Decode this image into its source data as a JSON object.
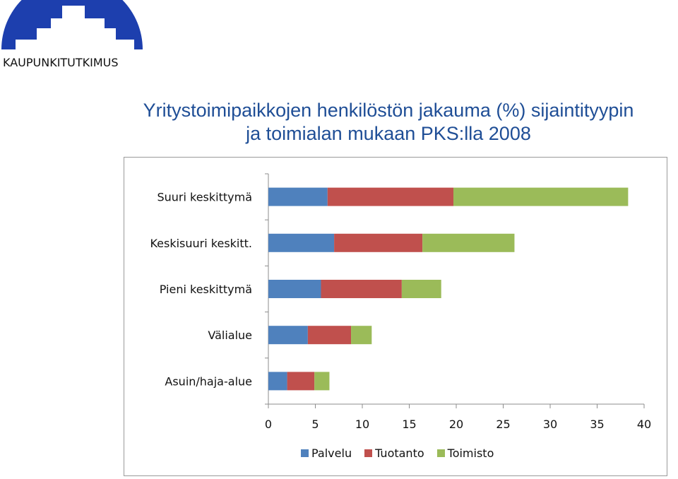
{
  "logo": {
    "text": "KAUPUNKITUTKIMUS",
    "color": "#1d3fae"
  },
  "chart_data": {
    "type": "bar",
    "orientation": "horizontal",
    "stacked": true,
    "title_lines": [
      "Yritystoimipaikkojen henkilöstön jakauma (%) sijaintityypin",
      "ja toimialan mukaan PKS:lla 2008"
    ],
    "categories": [
      "Suuri keskittymä",
      "Keskisuuri keskitt.",
      "Pieni keskittymä",
      "Välialue",
      "Asuin/haja-alue"
    ],
    "series": [
      {
        "name": "Palvelu",
        "color": "#4f81bd",
        "values": [
          6.3,
          7.0,
          5.6,
          4.2,
          2.0
        ]
      },
      {
        "name": "Tuotanto",
        "color": "#c0504d",
        "values": [
          13.4,
          9.4,
          8.6,
          4.6,
          2.9
        ]
      },
      {
        "name": "Toimisto",
        "color": "#9bbb59",
        "values": [
          18.6,
          9.8,
          4.2,
          2.2,
          1.6
        ]
      }
    ],
    "xlim": [
      0,
      40
    ],
    "xticks": [
      "0",
      "5",
      "10",
      "15",
      "20",
      "25",
      "30",
      "35",
      "40"
    ],
    "grid": false,
    "legend_position": "bottom"
  }
}
